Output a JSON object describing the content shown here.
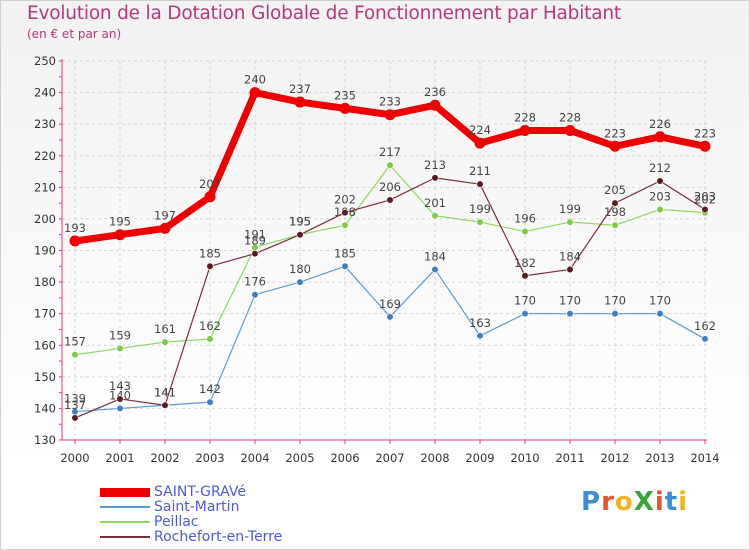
{
  "title": "Evolution de la Dotation Globale de Fonctionnement par Habitant",
  "subtitle": "(en € et par an)",
  "logo_text": "ProXiti",
  "colors": {
    "title": "#b23a78",
    "axis": "#e83a7a",
    "grid": "#d6d6d6",
    "tick_text": "#333333",
    "label_text": "#444444",
    "legend_text": "#4b5bd6"
  },
  "chart_data": {
    "type": "line",
    "title": "Evolution de la Dotation Globale de Fonctionnement par Habitant",
    "subtitle": "(en € et par an)",
    "xlabel": "",
    "ylabel": "",
    "ylim": [
      130,
      250
    ],
    "yticks": [
      130,
      140,
      150,
      160,
      170,
      180,
      190,
      200,
      210,
      220,
      230,
      240,
      250
    ],
    "grid": true,
    "legend_position": "bottom-left",
    "categories": [
      "2000",
      "2001",
      "2002",
      "2003",
      "2004",
      "2005",
      "2006",
      "2007",
      "2008",
      "2009",
      "2010",
      "2011",
      "2012",
      "2013",
      "2014"
    ],
    "series": [
      {
        "name": "Saint-Martin",
        "color": "#5b9bd5",
        "marker": "#3f7fc0",
        "width": 1.2,
        "values": [
          139,
          140,
          141,
          142,
          176,
          180,
          185,
          169,
          184,
          163,
          170,
          170,
          170,
          170,
          162
        ]
      },
      {
        "name": "Peillac",
        "color": "#8ed860",
        "marker": "#7cca45",
        "width": 1.2,
        "values": [
          157,
          159,
          161,
          162,
          191,
          195,
          198,
          217,
          201,
          199,
          196,
          199,
          198,
          203,
          202
        ]
      },
      {
        "name": "Rochefort-en-Terre",
        "color": "#7a2e3a",
        "marker": "#5a1a22",
        "width": 1.2,
        "values": [
          137,
          143,
          141,
          185,
          189,
          195,
          202,
          206,
          213,
          211,
          182,
          184,
          205,
          212,
          203
        ]
      },
      {
        "name": "SAINT-GRAVé",
        "color": "#ee0000",
        "marker": "#ee0000",
        "width": 7,
        "values": [
          193,
          195,
          197,
          207,
          240,
          237,
          235,
          233,
          236,
          224,
          228,
          228,
          223,
          226,
          223
        ]
      }
    ],
    "legend": [
      "SAINT-GRAVé",
      "Saint-Martin",
      "Peillac",
      "Rochefort-en-Terre"
    ]
  }
}
